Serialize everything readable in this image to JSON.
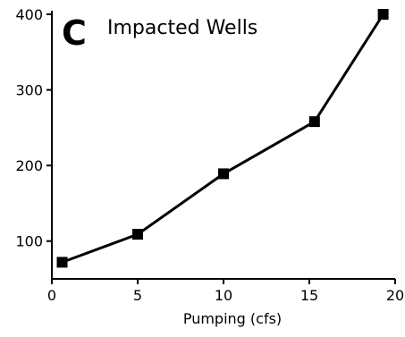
{
  "chart_data": {
    "type": "line",
    "panel_label": "C",
    "title": "Impacted Wells",
    "xlabel": "Pumping (cfs)",
    "ylabel": "",
    "xlim": [
      0,
      20
    ],
    "ylim": [
      50,
      400
    ],
    "xticks": [
      0,
      5,
      10,
      15,
      20
    ],
    "yticks": [
      100,
      200,
      300,
      400
    ],
    "x": [
      0.6,
      5,
      10,
      15.3,
      19.3
    ],
    "values": [
      72,
      109,
      189,
      258,
      400
    ],
    "marker": "square",
    "grid": false,
    "legend": "none",
    "colors": {
      "line": "#000000",
      "marker": "#000000",
      "axis": "#000000"
    }
  }
}
